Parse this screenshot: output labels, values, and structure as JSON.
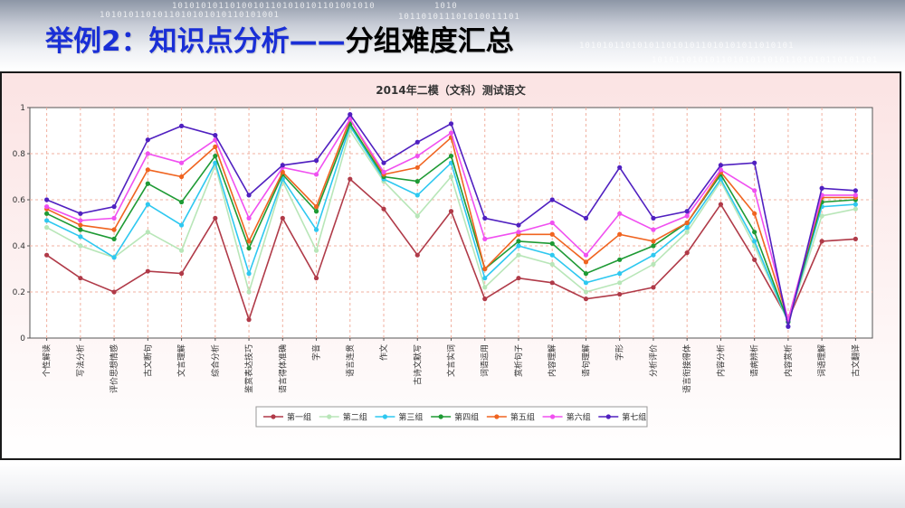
{
  "slide": {
    "title_accent": "举例2：知识点分析——",
    "title_rest": "分组难度汇总",
    "binary_lines": [
      "10101010110100101101010101101001010",
      "1010101101011010101010110101001",
      "1010",
      "1010101101010110101011010101011010101",
      "101101011101010011101",
      "101011010101101010110101101010110101101"
    ]
  },
  "colors": {
    "accent": "#1a2fd6",
    "series": [
      "#b03a48",
      "#b8e6b8",
      "#2ec8f0",
      "#1e9a34",
      "#f06420",
      "#f050f0",
      "#5020c0"
    ],
    "grid": "#f0b0a0",
    "plot_band": "#fdeaea"
  },
  "chart_data": {
    "type": "line",
    "title": "2014年二模（文科）测试语文",
    "categories": [
      "个性解读",
      "写法分析",
      "评价思想情感",
      "古文断句",
      "文言理解",
      "综合分析",
      "鉴赏表达技巧",
      "语言得体准确",
      "字音",
      "语言连贯",
      "作文",
      "古诗文默写",
      "文言实词",
      "词语运用",
      "赏析句子",
      "内容理解",
      "语句理解",
      "字形",
      "分析评价",
      "语言衔接得体",
      "内容分析",
      "语病辨析",
      "内容赏析",
      "词语理解",
      "古文翻译"
    ],
    "ylim": [
      0,
      1
    ],
    "yticks": [
      "0",
      "0.2",
      "0.4",
      "0.6",
      "0.8",
      "1"
    ],
    "grid": true,
    "legend_position": "bottom",
    "series": [
      {
        "name": "第一组",
        "values": [
          0.36,
          0.26,
          0.2,
          0.29,
          0.28,
          0.52,
          0.08,
          0.52,
          0.26,
          0.69,
          0.56,
          0.36,
          0.55,
          0.17,
          0.26,
          0.24,
          0.17,
          0.19,
          0.22,
          0.37,
          0.58,
          0.34,
          0.08,
          0.42,
          0.43
        ]
      },
      {
        "name": "第二组",
        "values": [
          0.48,
          0.4,
          0.35,
          0.46,
          0.38,
          0.75,
          0.2,
          0.68,
          0.38,
          0.9,
          0.68,
          0.53,
          0.7,
          0.22,
          0.36,
          0.32,
          0.2,
          0.24,
          0.32,
          0.46,
          0.68,
          0.4,
          0.07,
          0.53,
          0.56
        ]
      },
      {
        "name": "第三组",
        "values": [
          0.51,
          0.44,
          0.35,
          0.58,
          0.49,
          0.76,
          0.28,
          0.69,
          0.47,
          0.92,
          0.69,
          0.62,
          0.76,
          0.26,
          0.4,
          0.36,
          0.24,
          0.28,
          0.36,
          0.48,
          0.69,
          0.42,
          0.07,
          0.57,
          0.58
        ]
      },
      {
        "name": "第四组",
        "values": [
          0.54,
          0.47,
          0.43,
          0.67,
          0.59,
          0.79,
          0.39,
          0.71,
          0.55,
          0.93,
          0.7,
          0.68,
          0.79,
          0.3,
          0.42,
          0.41,
          0.28,
          0.34,
          0.4,
          0.5,
          0.71,
          0.46,
          0.07,
          0.59,
          0.6
        ]
      },
      {
        "name": "第五组",
        "values": [
          0.56,
          0.49,
          0.47,
          0.73,
          0.7,
          0.83,
          0.42,
          0.72,
          0.57,
          0.95,
          0.71,
          0.74,
          0.87,
          0.3,
          0.45,
          0.45,
          0.33,
          0.45,
          0.42,
          0.5,
          0.72,
          0.54,
          0.08,
          0.61,
          0.61
        ]
      },
      {
        "name": "第六组",
        "values": [
          0.57,
          0.51,
          0.52,
          0.8,
          0.76,
          0.86,
          0.52,
          0.74,
          0.71,
          0.95,
          0.72,
          0.79,
          0.89,
          0.43,
          0.46,
          0.5,
          0.36,
          0.54,
          0.47,
          0.53,
          0.73,
          0.64,
          0.08,
          0.62,
          0.62
        ]
      },
      {
        "name": "第七组",
        "values": [
          0.6,
          0.54,
          0.57,
          0.86,
          0.92,
          0.88,
          0.62,
          0.75,
          0.77,
          0.97,
          0.76,
          0.85,
          0.93,
          0.52,
          0.49,
          0.6,
          0.52,
          0.74,
          0.52,
          0.55,
          0.75,
          0.76,
          0.05,
          0.65,
          0.64
        ]
      }
    ]
  }
}
